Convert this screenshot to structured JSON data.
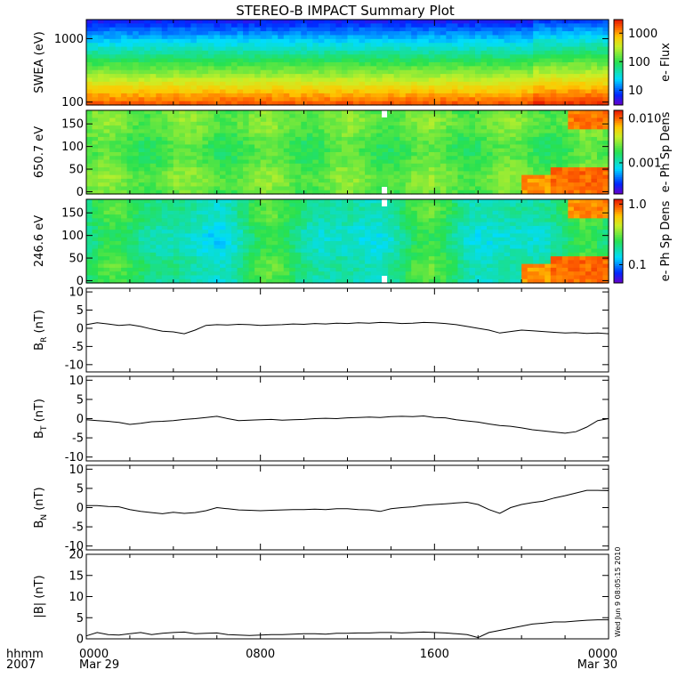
{
  "title": "STEREO-B IMPACT Summary Plot",
  "stamp": "Wed Jun  9 08:05:15 2010",
  "time_axis": {
    "corner_top": "hhmm",
    "corner_bottom": "2007",
    "ticks": [
      {
        "hour": 0,
        "label": "0000",
        "sublabel": "Mar 29"
      },
      {
        "hour": 8,
        "label": "0800",
        "sublabel": ""
      },
      {
        "hour": 16,
        "label": "1600",
        "sublabel": ""
      },
      {
        "hour": 24,
        "label": "0000",
        "sublabel": "Mar 30"
      }
    ],
    "xlim": [
      0,
      24
    ]
  },
  "chart_data": [
    {
      "type": "heatmap",
      "ylabel": "SWEA (eV)",
      "y_scale": "log",
      "ylim": [
        90,
        2000
      ],
      "yticks": [
        {
          "v": 100,
          "label": "100"
        },
        {
          "v": 1000,
          "label": "1000"
        }
      ],
      "colorbar": {
        "label": "e- Flux",
        "scale": "log",
        "range": [
          3,
          3000
        ],
        "ticks": [
          {
            "v": 10,
            "label": "10"
          },
          {
            "v": 100,
            "label": "100"
          },
          {
            "v": 1000,
            "label": "1000"
          }
        ]
      },
      "description": "Flux decreasing with energy: red/orange near 100 eV, yellow-green near 300-700 eV, cyan/blue near 1000 eV, purple above 1500 eV; intensity slightly higher after 21 h"
    },
    {
      "type": "heatmap",
      "ylabel": "650.7 eV",
      "ylim": [
        -5,
        180
      ],
      "yticks": [
        {
          "v": 0,
          "label": "0"
        },
        {
          "v": 50,
          "label": "50"
        },
        {
          "v": 100,
          "label": "100"
        },
        {
          "v": 150,
          "label": "150"
        }
      ],
      "colorbar": {
        "label": "e- Ph Sp Dens",
        "scale": "log",
        "range": [
          0.0002,
          0.015
        ],
        "ticks": [
          {
            "v": 0.001,
            "label": "0.001"
          },
          {
            "v": 0.01,
            "label": "0.010"
          }
        ]
      },
      "description": "Mostly green pitch-angle distribution; orange/red enhancement at low pitch angles after 20 h and at high pitch angles after 22 h; data gaps near 13.7 h"
    },
    {
      "type": "heatmap",
      "ylabel": "246.6 eV",
      "ylim": [
        -5,
        180
      ],
      "yticks": [
        {
          "v": 0,
          "label": "0"
        },
        {
          "v": 50,
          "label": "50"
        },
        {
          "v": 100,
          "label": "100"
        },
        {
          "v": 150,
          "label": "150"
        }
      ],
      "colorbar": {
        "label": "e- Ph Sp Dens",
        "scale": "log",
        "range": [
          0.05,
          1.2
        ],
        "ticks": [
          {
            "v": 0.1,
            "label": "0.1"
          },
          {
            "v": 1.0,
            "label": "1.0"
          }
        ]
      },
      "description": "Cyan/green pitch-angle distribution; orange/red enhancement at low pitch angles after 20 h and at high pitch angles after 22 h; data gaps near 13.7 h"
    },
    {
      "type": "line",
      "ylabel": "B",
      "ylabel_sub": "R",
      "ylabel_unit": " (nT)",
      "ylim": [
        -12,
        11
      ],
      "yticks": [
        {
          "v": -10,
          "label": "-10"
        },
        {
          "v": -5,
          "label": "-5"
        },
        {
          "v": 0,
          "label": "0"
        },
        {
          "v": 5,
          "label": "5"
        },
        {
          "v": 10,
          "label": "10"
        }
      ],
      "x": [
        0,
        0.5,
        1,
        1.5,
        2,
        2.5,
        3,
        3.5,
        4,
        4.5,
        5,
        5.5,
        6,
        6.5,
        7,
        7.5,
        8,
        8.5,
        9,
        9.5,
        10,
        10.5,
        11,
        11.5,
        12,
        12.5,
        13,
        13.5,
        14,
        14.5,
        15,
        15.5,
        16,
        16.5,
        17,
        17.5,
        18,
        18.5,
        19,
        19.5,
        20,
        20.5,
        21,
        21.5,
        22,
        22.5,
        23,
        23.5,
        24
      ],
      "y": [
        1.0,
        1.5,
        1.2,
        0.8,
        1.0,
        0.5,
        -0.2,
        -0.8,
        -1.0,
        -1.5,
        -0.5,
        0.8,
        1.0,
        0.9,
        1.1,
        1.0,
        0.8,
        0.9,
        1.0,
        1.2,
        1.1,
        1.3,
        1.2,
        1.4,
        1.3,
        1.5,
        1.4,
        1.6,
        1.5,
        1.3,
        1.4,
        1.6,
        1.5,
        1.3,
        1.0,
        0.5,
        0.0,
        -0.5,
        -1.3,
        -0.9,
        -0.5,
        -0.7,
        -0.9,
        -1.1,
        -1.3,
        -1.2,
        -1.4,
        -1.3,
        -1.5
      ]
    },
    {
      "type": "line",
      "ylabel": "B",
      "ylabel_sub": "T",
      "ylabel_unit": " (nT)",
      "ylim": [
        -11,
        11
      ],
      "yticks": [
        {
          "v": -10,
          "label": "-10"
        },
        {
          "v": -5,
          "label": "-5"
        },
        {
          "v": 0,
          "label": "0"
        },
        {
          "v": 5,
          "label": "5"
        },
        {
          "v": 10,
          "label": "10"
        }
      ],
      "x": [
        0,
        0.5,
        1,
        1.5,
        2,
        2.5,
        3,
        3.5,
        4,
        4.5,
        5,
        5.5,
        6,
        6.5,
        7,
        7.5,
        8,
        8.5,
        9,
        9.5,
        10,
        10.5,
        11,
        11.5,
        12,
        12.5,
        13,
        13.5,
        14,
        14.5,
        15,
        15.5,
        16,
        16.5,
        17,
        17.5,
        18,
        18.5,
        19,
        19.5,
        20,
        20.5,
        21,
        21.5,
        22,
        22.5,
        23,
        23.5,
        24
      ],
      "y": [
        -0.3,
        -0.5,
        -0.7,
        -1.0,
        -1.5,
        -1.2,
        -0.8,
        -0.7,
        -0.5,
        -0.2,
        0.0,
        0.3,
        0.6,
        0.0,
        -0.5,
        -0.4,
        -0.3,
        -0.2,
        -0.4,
        -0.3,
        -0.2,
        0.0,
        0.1,
        0.0,
        0.2,
        0.3,
        0.4,
        0.3,
        0.5,
        0.6,
        0.5,
        0.7,
        0.3,
        0.2,
        -0.3,
        -0.6,
        -0.9,
        -1.4,
        -1.8,
        -2.0,
        -2.4,
        -2.9,
        -3.2,
        -3.5,
        -3.8,
        -3.4,
        -2.2,
        -0.5,
        0.0
      ]
    },
    {
      "type": "line",
      "ylabel": "B",
      "ylabel_sub": "N",
      "ylabel_unit": " (nT)",
      "ylim": [
        -11,
        11
      ],
      "yticks": [
        {
          "v": -10,
          "label": "-10"
        },
        {
          "v": -5,
          "label": "-5"
        },
        {
          "v": 0,
          "label": "0"
        },
        {
          "v": 5,
          "label": "5"
        },
        {
          "v": 10,
          "label": "10"
        }
      ],
      "x": [
        0,
        0.5,
        1,
        1.5,
        2,
        2.5,
        3,
        3.5,
        4,
        4.5,
        5,
        5.5,
        6,
        6.5,
        7,
        7.5,
        8,
        8.5,
        9,
        9.5,
        10,
        10.5,
        11,
        11.5,
        12,
        12.5,
        13,
        13.5,
        14,
        14.5,
        15,
        15.5,
        16,
        16.5,
        17,
        17.5,
        18,
        18.5,
        19,
        19.5,
        20,
        20.5,
        21,
        21.5,
        22,
        22.5,
        23,
        23.5,
        24
      ],
      "y": [
        0.5,
        0.5,
        0.3,
        0.2,
        -0.5,
        -1.0,
        -1.3,
        -1.6,
        -1.2,
        -1.5,
        -1.3,
        -0.8,
        0.0,
        -0.3,
        -0.6,
        -0.7,
        -0.8,
        -0.7,
        -0.6,
        -0.5,
        -0.5,
        -0.4,
        -0.5,
        -0.3,
        -0.3,
        -0.5,
        -0.6,
        -1.0,
        -0.3,
        0.0,
        0.2,
        0.6,
        0.8,
        1.0,
        1.2,
        1.4,
        0.8,
        -0.5,
        -1.5,
        0.0,
        0.8,
        1.3,
        1.7,
        2.5,
        3.1,
        3.8,
        4.5,
        4.5,
        4.4
      ]
    },
    {
      "type": "line",
      "ylabel": "|B| (nT)",
      "ylim": [
        0,
        20
      ],
      "yticks": [
        {
          "v": 0,
          "label": "0"
        },
        {
          "v": 5,
          "label": "5"
        },
        {
          "v": 10,
          "label": "10"
        },
        {
          "v": 15,
          "label": "15"
        },
        {
          "v": 20,
          "label": "20"
        }
      ],
      "x": [
        0,
        0.5,
        1,
        1.5,
        2,
        2.5,
        3,
        3.5,
        4,
        4.5,
        5,
        5.5,
        6,
        6.5,
        7,
        7.5,
        8,
        8.5,
        9,
        9.5,
        10,
        10.5,
        11,
        11.5,
        12,
        12.5,
        13,
        13.5,
        14,
        14.5,
        15,
        15.5,
        16,
        16.5,
        17,
        17.5,
        18,
        18.5,
        19,
        19.5,
        20,
        20.5,
        21,
        21.5,
        22,
        22.5,
        23,
        23.5,
        24
      ],
      "y": [
        0.7,
        1.5,
        1.0,
        0.9,
        1.2,
        1.5,
        1.0,
        1.3,
        1.5,
        1.6,
        1.2,
        1.3,
        1.4,
        1.0,
        0.9,
        0.8,
        0.9,
        1.0,
        1.0,
        1.1,
        1.2,
        1.2,
        1.1,
        1.3,
        1.3,
        1.4,
        1.4,
        1.5,
        1.5,
        1.4,
        1.5,
        1.6,
        1.5,
        1.4,
        1.2,
        1.0,
        0.3,
        1.5,
        2.0,
        2.5,
        3.0,
        3.5,
        3.7,
        4.0,
        4.0,
        4.2,
        4.4,
        4.5,
        4.5
      ]
    }
  ]
}
